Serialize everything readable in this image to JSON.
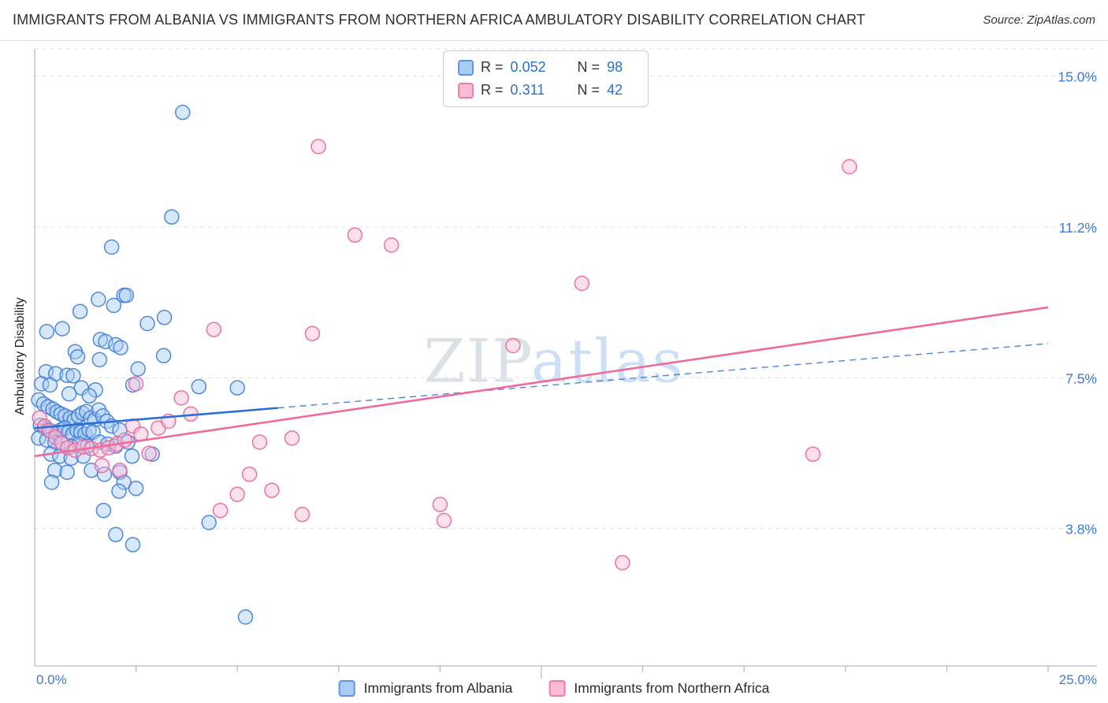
{
  "header": {
    "title": "IMMIGRANTS FROM ALBANIA VS IMMIGRANTS FROM NORTHERN AFRICA AMBULATORY DISABILITY CORRELATION CHART",
    "source_label": "Source:",
    "source_value": "ZipAtlas.com"
  },
  "legend": {
    "rows": [
      {
        "series": "albania",
        "r_label": "R =",
        "r_value": "0.052",
        "n_label": "N =",
        "n_value": "98"
      },
      {
        "series": "northern_africa",
        "r_label": "R =",
        "r_value": "0.311",
        "n_label": "N =",
        "n_value": "42"
      }
    ]
  },
  "watermark": {
    "part1": "ZIP",
    "part2": "atlas"
  },
  "chart_data": {
    "type": "scatter",
    "title": "Immigrants from Albania vs Immigrants from Northern Africa Ambulatory Disability Correlation Chart",
    "ylabel": "Ambulatory Disability",
    "x_axis": {
      "min_label": "0.0%",
      "max_label": "25.0%",
      "range": [
        0,
        26.2
      ],
      "tick_step": 2.5,
      "major_tick": 12.5
    },
    "y_axis": {
      "range": [
        0,
        15.7
      ],
      "ticks": [
        {
          "value": 15.0,
          "label": "15.0%"
        },
        {
          "value": 11.25,
          "label": "11.2%"
        },
        {
          "value": 7.5,
          "label": "7.5%"
        },
        {
          "value": 3.75,
          "label": "3.8%"
        }
      ]
    },
    "grid": "horizontal-dashed",
    "legend_position": "bottom-center",
    "series": [
      {
        "key": "albania",
        "name": "Immigrants from Albania",
        "r": 0.052,
        "n": 98,
        "color_fill": "#A9CCF6",
        "color_stroke": "#3E7CD8",
        "trend_color": "#2B6FD4",
        "trend": {
          "solid": [
            [
              0,
              6.25
            ],
            [
              6.0,
              6.75
            ]
          ],
          "dashed": [
            [
              6.0,
              6.75
            ],
            [
              25,
              8.35
            ]
          ]
        },
        "points": [
          [
            3.65,
            14.1
          ],
          [
            3.38,
            11.5
          ],
          [
            1.9,
            10.75
          ],
          [
            2.2,
            9.55
          ],
          [
            2.26,
            9.55
          ],
          [
            1.57,
            9.45
          ],
          [
            1.95,
            9.3
          ],
          [
            1.12,
            9.15
          ],
          [
            3.2,
            9.0
          ],
          [
            2.78,
            8.85
          ],
          [
            0.3,
            8.65
          ],
          [
            0.68,
            8.72
          ],
          [
            1.62,
            8.45
          ],
          [
            1.75,
            8.4
          ],
          [
            2.0,
            8.32
          ],
          [
            2.12,
            8.25
          ],
          [
            1.0,
            8.15
          ],
          [
            1.06,
            8.02
          ],
          [
            3.18,
            8.05
          ],
          [
            1.6,
            7.95
          ],
          [
            2.55,
            7.72
          ],
          [
            0.28,
            7.65
          ],
          [
            0.52,
            7.6
          ],
          [
            0.8,
            7.56
          ],
          [
            0.95,
            7.55
          ],
          [
            5.0,
            7.25
          ],
          [
            4.05,
            7.28
          ],
          [
            0.17,
            7.35
          ],
          [
            0.38,
            7.32
          ],
          [
            1.15,
            7.25
          ],
          [
            1.5,
            7.2
          ],
          [
            2.42,
            7.32
          ],
          [
            0.85,
            7.1
          ],
          [
            1.35,
            7.05
          ],
          [
            0.1,
            6.95
          ],
          [
            0.22,
            6.85
          ],
          [
            0.33,
            6.78
          ],
          [
            0.45,
            6.72
          ],
          [
            0.55,
            6.65
          ],
          [
            0.65,
            6.6
          ],
          [
            0.75,
            6.55
          ],
          [
            0.88,
            6.5
          ],
          [
            0.98,
            6.45
          ],
          [
            1.08,
            6.55
          ],
          [
            1.18,
            6.62
          ],
          [
            1.28,
            6.66
          ],
          [
            1.38,
            6.5
          ],
          [
            1.48,
            6.45
          ],
          [
            1.58,
            6.7
          ],
          [
            1.68,
            6.55
          ],
          [
            1.78,
            6.42
          ],
          [
            0.14,
            6.32
          ],
          [
            0.24,
            6.26
          ],
          [
            0.34,
            6.2
          ],
          [
            0.44,
            6.16
          ],
          [
            0.54,
            6.1
          ],
          [
            0.64,
            6.2
          ],
          [
            0.74,
            6.25
          ],
          [
            0.84,
            6.15
          ],
          [
            0.94,
            6.1
          ],
          [
            1.04,
            6.2
          ],
          [
            1.14,
            6.14
          ],
          [
            1.24,
            6.1
          ],
          [
            1.34,
            6.2
          ],
          [
            1.44,
            6.15
          ],
          [
            1.9,
            6.3
          ],
          [
            2.1,
            6.2
          ],
          [
            0.1,
            6.0
          ],
          [
            0.3,
            5.95
          ],
          [
            0.5,
            5.9
          ],
          [
            0.7,
            5.85
          ],
          [
            0.9,
            5.8
          ],
          [
            1.1,
            5.85
          ],
          [
            1.3,
            5.8
          ],
          [
            1.6,
            5.9
          ],
          [
            1.8,
            5.85
          ],
          [
            2.0,
            5.8
          ],
          [
            2.3,
            5.9
          ],
          [
            0.4,
            5.6
          ],
          [
            0.62,
            5.55
          ],
          [
            0.9,
            5.5
          ],
          [
            1.2,
            5.55
          ],
          [
            2.4,
            5.55
          ],
          [
            2.9,
            5.6
          ],
          [
            0.5,
            5.2
          ],
          [
            0.8,
            5.15
          ],
          [
            1.4,
            5.2
          ],
          [
            1.72,
            5.1
          ],
          [
            2.1,
            5.15
          ],
          [
            2.2,
            4.9
          ],
          [
            0.42,
            4.9
          ],
          [
            2.5,
            4.75
          ],
          [
            2.08,
            4.68
          ],
          [
            1.7,
            4.2
          ],
          [
            4.3,
            3.9
          ],
          [
            2.0,
            3.6
          ],
          [
            2.42,
            3.35
          ],
          [
            5.2,
            1.55
          ]
        ]
      },
      {
        "key": "northern_africa",
        "name": "Immigrants from Northern Africa",
        "r": 0.311,
        "n": 42,
        "color_fill": "#F9BCD4",
        "color_stroke": "#E8659A",
        "trend_color": "#EE6B9D",
        "trend": {
          "solid": [
            [
              0,
              5.55
            ],
            [
              25,
              9.25
            ]
          ]
        },
        "points": [
          [
            7.0,
            13.25
          ],
          [
            20.1,
            12.75
          ],
          [
            7.9,
            11.05
          ],
          [
            8.8,
            10.8
          ],
          [
            13.5,
            9.85
          ],
          [
            4.42,
            8.7
          ],
          [
            6.85,
            8.6
          ],
          [
            11.8,
            8.3
          ],
          [
            19.2,
            5.6
          ],
          [
            14.5,
            2.9
          ],
          [
            10.0,
            4.35
          ],
          [
            10.1,
            3.95
          ],
          [
            6.6,
            4.1
          ],
          [
            5.3,
            5.1
          ],
          [
            5.55,
            5.9
          ],
          [
            6.35,
            6.0
          ],
          [
            5.85,
            4.7
          ],
          [
            5.0,
            4.6
          ],
          [
            4.58,
            4.2
          ],
          [
            0.12,
            6.5
          ],
          [
            0.25,
            6.3
          ],
          [
            0.38,
            6.18
          ],
          [
            0.52,
            6.02
          ],
          [
            0.66,
            5.88
          ],
          [
            0.82,
            5.76
          ],
          [
            1.0,
            5.7
          ],
          [
            1.2,
            5.78
          ],
          [
            1.4,
            5.74
          ],
          [
            1.62,
            5.7
          ],
          [
            1.82,
            5.76
          ],
          [
            2.02,
            5.85
          ],
          [
            2.22,
            5.95
          ],
          [
            2.42,
            6.3
          ],
          [
            2.62,
            6.1
          ],
          [
            2.82,
            5.62
          ],
          [
            3.05,
            6.25
          ],
          [
            3.3,
            6.42
          ],
          [
            3.62,
            7.0
          ],
          [
            2.5,
            7.35
          ],
          [
            1.66,
            5.32
          ],
          [
            2.1,
            5.2
          ],
          [
            3.85,
            6.6
          ]
        ]
      }
    ]
  }
}
